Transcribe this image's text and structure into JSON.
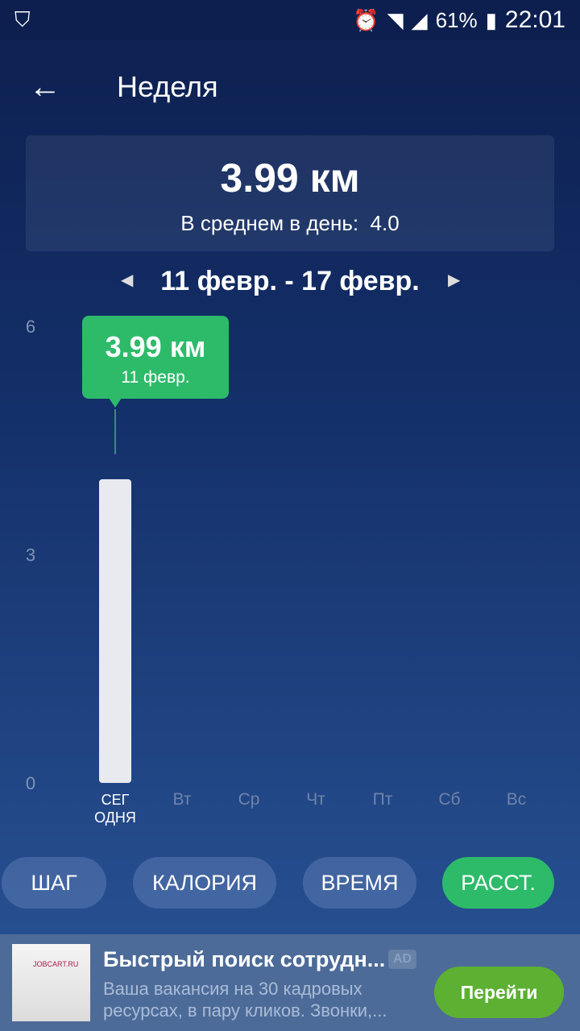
{
  "status": {
    "battery": "61%",
    "time": "22:01",
    "icons": [
      "shield-check-icon",
      "alarm-icon",
      "wifi-icon",
      "signal-icon",
      "signal-h-icon",
      "battery-icon"
    ]
  },
  "header": {
    "title": "Неделя",
    "back_icon": "arrow-left-icon"
  },
  "summary": {
    "total": "3.99 км",
    "avg_label": "В среднем в день:",
    "avg_value": "4.0"
  },
  "range": {
    "label": "11 февр. - 17 февр."
  },
  "colors": {
    "accent": "#2dbb6a",
    "bar": "#e8eaf0",
    "ad_button": "#5cb032"
  },
  "chart_data": {
    "type": "bar",
    "categories": [
      "СЕГ ОДНЯ",
      "Вт",
      "Ср",
      "Чт",
      "Пт",
      "Сб",
      "Вс"
    ],
    "values": [
      3.99,
      0,
      0,
      0,
      0,
      0,
      0
    ],
    "ylim": [
      0,
      6
    ],
    "yticks": [
      "0",
      "3",
      "6"
    ],
    "tooltip": {
      "value": "3.99 км",
      "date": "11 февр."
    }
  },
  "tabs": [
    {
      "label": "ШАГ"
    },
    {
      "label": "КАЛОРИЯ"
    },
    {
      "label": "ВРЕМЯ"
    },
    {
      "label": "РАССТ.",
      "active": true
    }
  ],
  "ad": {
    "image_text": "JOBCART.RU",
    "title": "Быстрый поиск сотрудн...",
    "badge": "AD",
    "text": "Ваша вакансия на 30 кадровых ресурсах, в пару кликов. Звонки,...",
    "button": "Перейти"
  }
}
